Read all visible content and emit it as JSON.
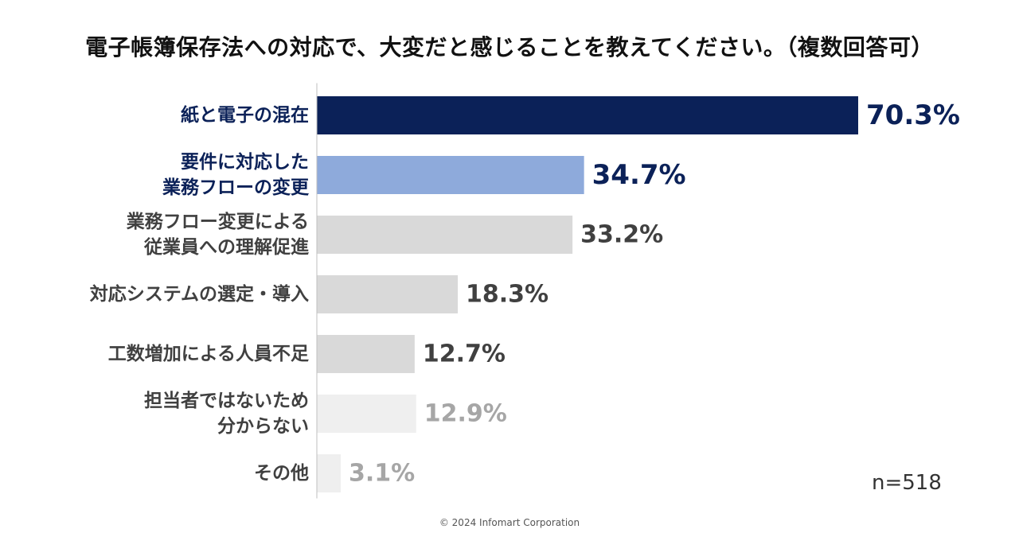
{
  "chart_data": {
    "type": "bar",
    "orientation": "horizontal",
    "title": "電子帳簿保存法への対応で、大変だと感じることを教えてください。（複数回答可）",
    "categories": [
      [
        "紙と電子の混在"
      ],
      [
        "要件に対応した",
        "業務フローの変更"
      ],
      [
        "業務フロー変更による",
        "従業員への理解促進"
      ],
      [
        "対応システムの選定・導入"
      ],
      [
        "工数増加による人員不足"
      ],
      [
        "担当者ではないため",
        "分からない"
      ],
      [
        "その他"
      ]
    ],
    "values": [
      70.3,
      34.7,
      33.2,
      18.3,
      12.7,
      12.9,
      3.1
    ],
    "value_labels": [
      "70.3%",
      "34.7%",
      "33.2%",
      "18.3%",
      "12.7%",
      "12.9%",
      "3.1%"
    ],
    "bar_colors": [
      "#0b2158",
      "#8eaadb",
      "#d9d9d9",
      "#d9d9d9",
      "#d9d9d9",
      "#efefef",
      "#efefef"
    ],
    "label_colors": [
      "#0b2158",
      "#0b2158",
      "#404040",
      "#404040",
      "#404040",
      "#404040",
      "#404040"
    ],
    "value_colors": [
      "#0b2158",
      "#0b2158",
      "#404040",
      "#404040",
      "#404040",
      "#a6a6a6",
      "#a6a6a6"
    ],
    "xlim": [
      0,
      70.3
    ],
    "xlabel": "",
    "ylabel": "",
    "grid": false,
    "legend": "none"
  },
  "sample_size": "n=518",
  "copyright": "© 2024  Infomart Corporation"
}
